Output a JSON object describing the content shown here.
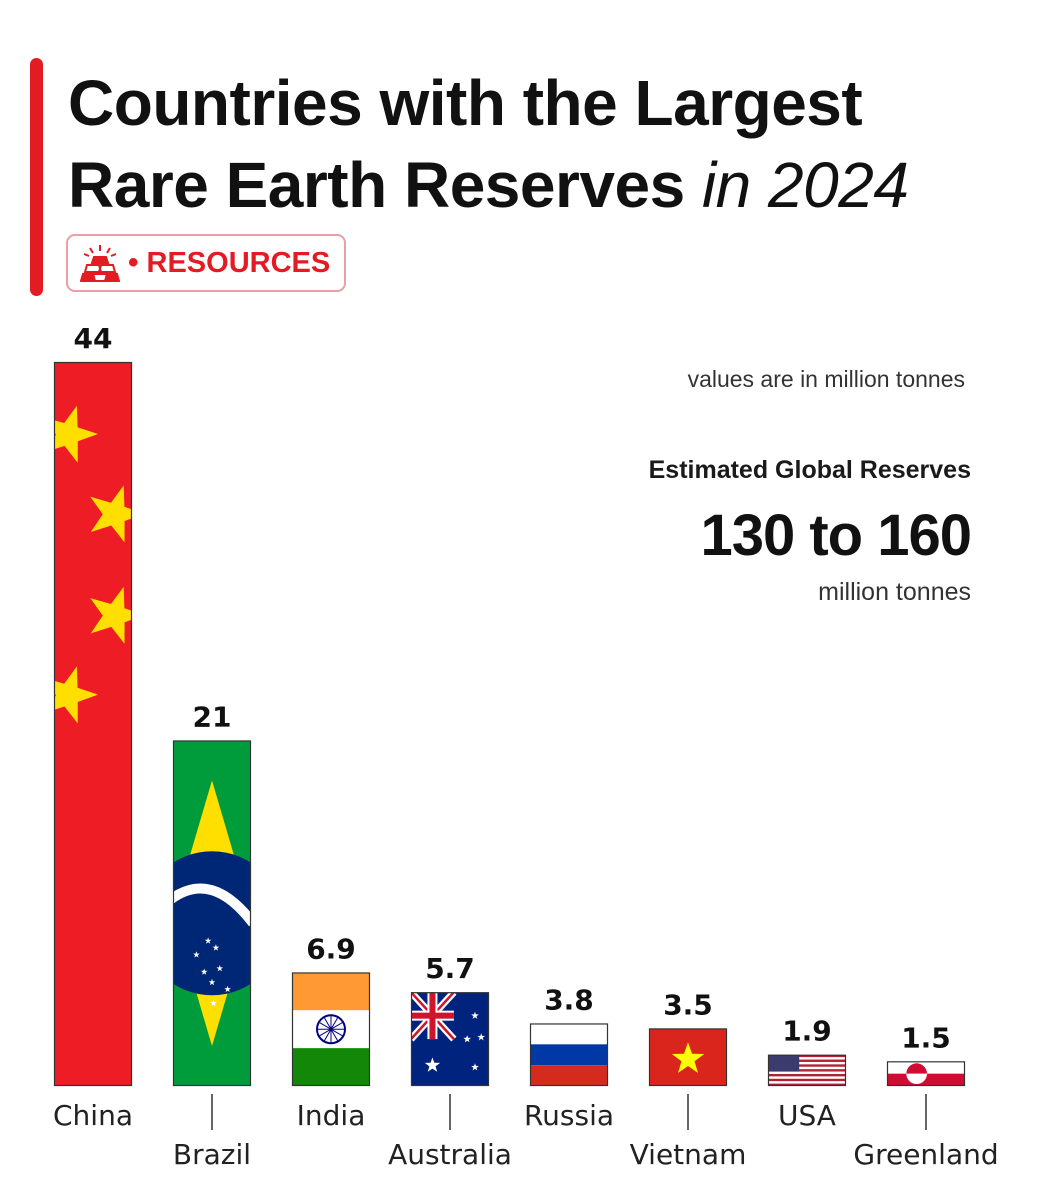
{
  "header": {
    "title_line1": "Countries with the Largest",
    "title_line2_bold": "Rare Earth Reserves",
    "title_line2_light": "in 2024",
    "badge_dot": "•",
    "badge_label": "RESOURCES",
    "badge_icon": "gold-bars-icon",
    "accent_color": "#e31b23"
  },
  "annotations": {
    "note": "values are in million tonnes",
    "estimate_label": "Estimated  Global Reserves",
    "estimate_value": "130 to 160",
    "estimate_unit": "million tonnes"
  },
  "chart_data": {
    "type": "bar",
    "categories": [
      "China",
      "Brazil",
      "India",
      "Australia",
      "Russia",
      "Vietnam",
      "USA",
      "Greenland"
    ],
    "values": [
      44,
      21,
      6.9,
      5.7,
      3.8,
      3.5,
      1.9,
      1.5
    ],
    "value_labels": [
      "44",
      "21",
      "6.9",
      "5.7",
      "3.8",
      "3.5",
      "1.9",
      "1.5"
    ],
    "bar_fills": [
      "flag-china",
      "flag-brazil",
      "flag-india",
      "flag-australia",
      "flag-russia",
      "flag-vietnam",
      "flag-usa",
      "flag-greenland"
    ],
    "title": "",
    "xlabel": "",
    "ylabel": "",
    "ylim": [
      0,
      44
    ],
    "grid": false,
    "legend": "none"
  }
}
